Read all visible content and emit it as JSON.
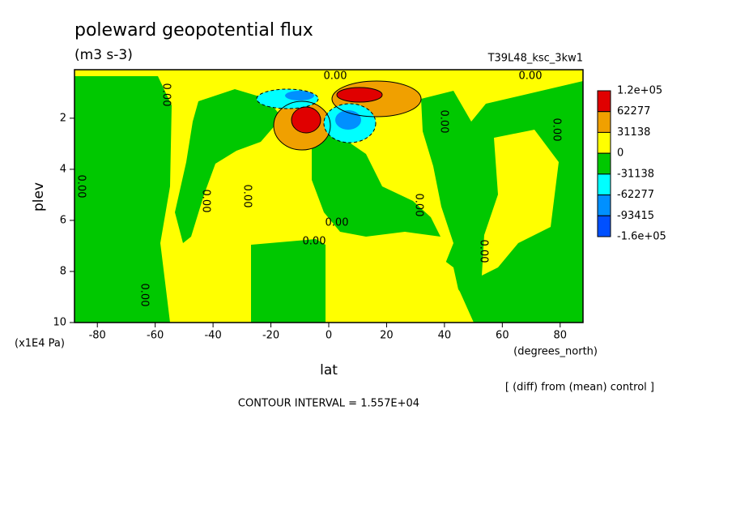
{
  "chart_data": {
    "type": "contour",
    "title": "poleward geopotential flux",
    "subtitle": "(m3 s-3)",
    "run_label": "T39L48_ksc_3kw1",
    "x_label": "lat",
    "x_units": "(degrees_north)",
    "y_label": "plev",
    "y_units": "(x1E4 Pa)",
    "xlim": [
      -87.9,
      87.9
    ],
    "xticks": [
      -80,
      -60,
      -40,
      -20,
      0,
      20,
      40,
      60,
      80
    ],
    "ylim": [
      0.1,
      10
    ],
    "y_inverted": true,
    "yticks": [
      2,
      4,
      6,
      8,
      10
    ],
    "levels": [
      {
        "value": 120000,
        "label": "1.2e+05"
      },
      62277,
      31138,
      0,
      -31138,
      -62277,
      -93415,
      {
        "value": -160000,
        "label": "-1.6e+05"
      }
    ],
    "level_colors": [
      "#e00000",
      "#f0a000",
      "#ffff00",
      "#00c800",
      "#00ffff",
      "#0090ff",
      "#0050ff"
    ],
    "contour_label": "0.00",
    "note": "[ (diff) from (mean) control ]",
    "contour_interval": "CONTOUR INTERVAL = 1.557E+04"
  }
}
